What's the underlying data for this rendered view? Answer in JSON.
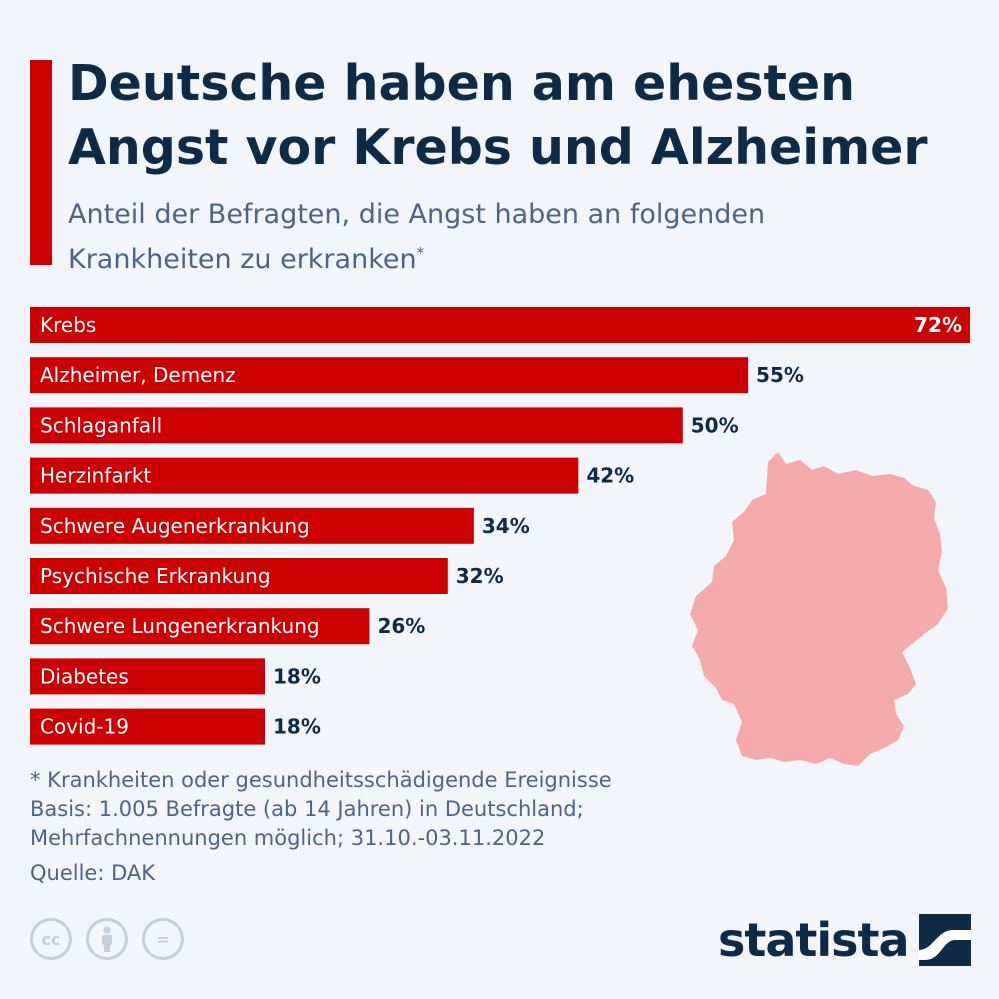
{
  "header": {
    "title": "Deutsche haben am ehesten\nAngst vor Krebs und Alzheimer",
    "subtitle": "Anteil der Befragten, die Angst haben an folgenden Krankheiten zu erkranken",
    "subtitle_marker": "*"
  },
  "colors": {
    "accent": "#cc0000",
    "title": "#0f2a44",
    "subtitle": "#4d6584",
    "map": "#f4a9ab",
    "background": "#f2f5f9"
  },
  "chart_data": {
    "type": "bar",
    "orientation": "horizontal",
    "categories": [
      "Krebs",
      "Alzheimer, Demenz",
      "Schlaganfall",
      "Herzinfarkt",
      "Schwere Augenerkrankung",
      "Psychische Erkrankung",
      "Schwere Lungenerkrankung",
      "Diabetes",
      "Covid-19"
    ],
    "values": [
      72,
      55,
      50,
      42,
      34,
      32,
      26,
      18,
      18
    ],
    "value_labels": [
      "72%",
      "55%",
      "50%",
      "42%",
      "34%",
      "32%",
      "26%",
      "18%",
      "18%"
    ],
    "unit": "%",
    "title": "Deutsche haben am ehesten Angst vor Krebs und Alzheimer",
    "xlim": [
      0,
      72
    ],
    "grid": false,
    "legend": "none",
    "bar_color": "#cc0000"
  },
  "decoration": {
    "map_icon": "germany-map-icon"
  },
  "footer": {
    "footnote": "* Krankheiten oder gesundheitsschädigende Ereignisse",
    "basis_line1": "Basis: 1.005 Befragte (ab 14 Jahren) in Deutschland;",
    "basis_line2": "Mehrfachnennungen möglich; 31.10.-03.11.2022",
    "source": "Quelle: DAK",
    "cc_icons": [
      "cc-icon",
      "person-icon",
      "equals-icon"
    ],
    "cc_labels": [
      "cc",
      "",
      "="
    ],
    "logo_text": "statista"
  }
}
